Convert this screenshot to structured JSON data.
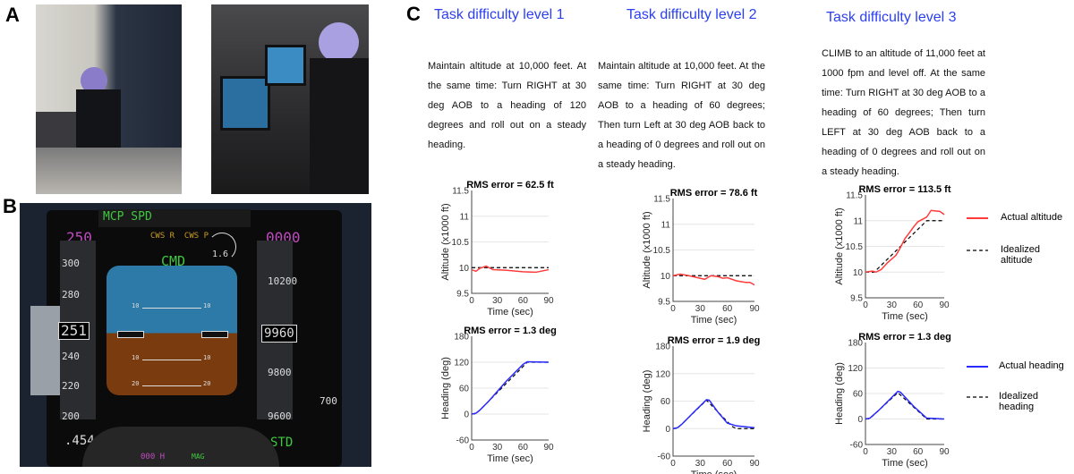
{
  "panels": {
    "a": "A",
    "b": "B",
    "c": "C"
  },
  "pfd": {
    "mcp_spd": "MCP SPD",
    "cws": "CWS R  CWS P",
    "speed_sel": "250",
    "alt_sel": "0000",
    "cmd": "CMD",
    "speed_ticks": [
      "300",
      "280",
      "240",
      "220",
      "200"
    ],
    "speed_current": "251",
    "mach": ".454",
    "alt_ticks": [
      "10200",
      "9800",
      "9600"
    ],
    "alt_current": "9960",
    "vsi": "1.6",
    "vs_value": "700",
    "baro": "STD",
    "heading_sel": "000 H",
    "mag": "MAG",
    "pitch_labels": [
      "10",
      "10",
      "10",
      "10",
      "20",
      "20"
    ]
  },
  "levels": [
    {
      "title": "Task difficulty level 1",
      "text": "Maintain altitude at 10,000 feet. At the same time: Turn RIGHT at 30 deg AOB to a heading of 120 degrees and roll out on a steady heading."
    },
    {
      "title": "Task difficulty level 2",
      "text": "Maintain altitude at 10,000 feet. At the same time: Turn RIGHT at 30 deg AOB to a heading of 60 degrees; Then turn Left at 30 deg AOB back to a heading of 0 degrees and roll out on a steady heading."
    },
    {
      "title": "Task difficulty level 3",
      "text": "CLIMB to an altitude of 11,000 feet at 1000 fpm and level off.  At the same time: Turn RIGHT at 30 deg AOB to a heading of 60 degrees;  Then turn LEFT at 30 deg AOB back to a heading of 0 degrees and roll out on a steady heading."
    }
  ],
  "legend": {
    "actual_altitude": "Actual altitude",
    "idealized_altitude": "Idealized altitude",
    "actual_heading": "Actual heading",
    "idealized_heading": "Idealized heading"
  },
  "colors": {
    "altitude": "#ff3b3b",
    "heading": "#2a2aff",
    "ideal": "#000000",
    "title": "#2b3ff0"
  },
  "chart_data": [
    {
      "type": "line",
      "title": "RMS error = 62.5 ft",
      "xlabel": "Time (sec)",
      "ylabel": "Altitude (x1000 ft)",
      "xlim": [
        0,
        90
      ],
      "ylim": [
        9.5,
        11.5
      ],
      "xticks": [
        0,
        30,
        60,
        90
      ],
      "yticks": [
        9.5,
        10,
        10.5,
        11,
        11.5
      ],
      "grid": "horizontal",
      "series": [
        {
          "name": "Actual altitude",
          "x": [
            0,
            5,
            10,
            17,
            25,
            40,
            60,
            75,
            90
          ],
          "y": [
            9.96,
            9.93,
            9.99,
            10.03,
            9.96,
            9.95,
            9.92,
            9.91,
            9.96
          ]
        },
        {
          "name": "Idealized altitude",
          "x": [
            0,
            90
          ],
          "y": [
            10,
            10
          ]
        }
      ]
    },
    {
      "type": "line",
      "title": "RMS error = 1.3 deg",
      "xlabel": "Time (sec)",
      "ylabel": "Heading (deg)",
      "xlim": [
        0,
        90
      ],
      "ylim": [
        -60,
        180
      ],
      "xticks": [
        0,
        30,
        60,
        90
      ],
      "yticks": [
        -60,
        0,
        60,
        120,
        180
      ],
      "grid": "horizontal",
      "series": [
        {
          "name": "Actual heading",
          "x": [
            0,
            5,
            10,
            20,
            40,
            60,
            65,
            90
          ],
          "y": [
            0,
            2,
            10,
            30,
            75,
            115,
            121,
            120
          ]
        },
        {
          "name": "Idealized heading",
          "x": [
            0,
            5,
            10,
            65,
            90
          ],
          "y": [
            0,
            1,
            10,
            120,
            120
          ]
        }
      ]
    },
    {
      "type": "line",
      "title": "RMS error = 78.6 ft",
      "xlabel": "Time (sec)",
      "ylabel": "Altitude (x1000 ft)",
      "xlim": [
        0,
        90
      ],
      "ylim": [
        9.5,
        11.5
      ],
      "xticks": [
        0,
        30,
        60,
        90
      ],
      "yticks": [
        9.5,
        10,
        10.5,
        11,
        11.5
      ],
      "grid": "horizontal",
      "series": [
        {
          "name": "Actual altitude",
          "x": [
            0,
            8,
            15,
            25,
            35,
            42,
            50,
            55,
            60,
            70,
            80,
            85,
            90
          ],
          "y": [
            10,
            10.03,
            10.01,
            9.97,
            9.93,
            10,
            9.98,
            9.95,
            9.96,
            9.9,
            9.87,
            9.87,
            9.82
          ]
        },
        {
          "name": "Idealized altitude",
          "x": [
            0,
            90
          ],
          "y": [
            10,
            10
          ]
        }
      ]
    },
    {
      "type": "line",
      "title": "RMS error = 1.9 deg",
      "xlabel": "Time (sec)",
      "ylabel": "Heading (deg)",
      "xlim": [
        0,
        90
      ],
      "ylim": [
        -60,
        180
      ],
      "xticks": [
        0,
        30,
        60,
        90
      ],
      "yticks": [
        -60,
        0,
        60,
        120,
        180
      ],
      "grid": "horizontal",
      "series": [
        {
          "name": "Actual heading",
          "x": [
            0,
            5,
            10,
            25,
            37,
            40,
            50,
            60,
            70,
            90
          ],
          "y": [
            0,
            2,
            10,
            40,
            63,
            62,
            35,
            12,
            6,
            2
          ]
        },
        {
          "name": "Idealized heading",
          "x": [
            0,
            5,
            37,
            65,
            70,
            90
          ],
          "y": [
            0,
            1,
            62,
            5,
            0,
            0
          ]
        }
      ]
    },
    {
      "type": "line",
      "title": "RMS error = 113.5 ft",
      "xlabel": "Time (sec)",
      "ylabel": "Altitude (x1000 ft)",
      "xlim": [
        0,
        90
      ],
      "ylim": [
        9.5,
        11.5
      ],
      "xticks": [
        0,
        30,
        60,
        90
      ],
      "yticks": [
        9.5,
        10,
        10.5,
        11,
        11.5
      ],
      "grid": "horizontal",
      "series": [
        {
          "name": "Actual altitude",
          "x": [
            0,
            8,
            12,
            18,
            25,
            35,
            40,
            45,
            50,
            55,
            60,
            70,
            75,
            80,
            85,
            90
          ],
          "y": [
            10,
            10.02,
            10,
            10.05,
            10.18,
            10.33,
            10.48,
            10.65,
            10.76,
            10.88,
            10.98,
            11.07,
            11.2,
            11.19,
            11.18,
            11.12
          ]
        },
        {
          "name": "Idealized altitude",
          "x": [
            0,
            10,
            70,
            90
          ],
          "y": [
            10,
            10,
            11,
            11
          ]
        }
      ]
    },
    {
      "type": "line",
      "title": "RMS error = 1.3 deg",
      "xlabel": "Time (sec)",
      "ylabel": "Heading (deg)",
      "xlim": [
        0,
        90
      ],
      "ylim": [
        -60,
        180
      ],
      "xticks": [
        0,
        30,
        60,
        90
      ],
      "yticks": [
        -60,
        0,
        60,
        120,
        180
      ],
      "grid": "horizontal",
      "series": [
        {
          "name": "Actual heading",
          "x": [
            0,
            5,
            15,
            37,
            40,
            55,
            70,
            90
          ],
          "y": [
            0,
            2,
            20,
            65,
            63,
            30,
            2,
            0
          ]
        },
        {
          "name": "Idealized heading",
          "x": [
            0,
            5,
            37,
            70,
            90
          ],
          "y": [
            0,
            1,
            62,
            0,
            0
          ]
        }
      ]
    }
  ]
}
